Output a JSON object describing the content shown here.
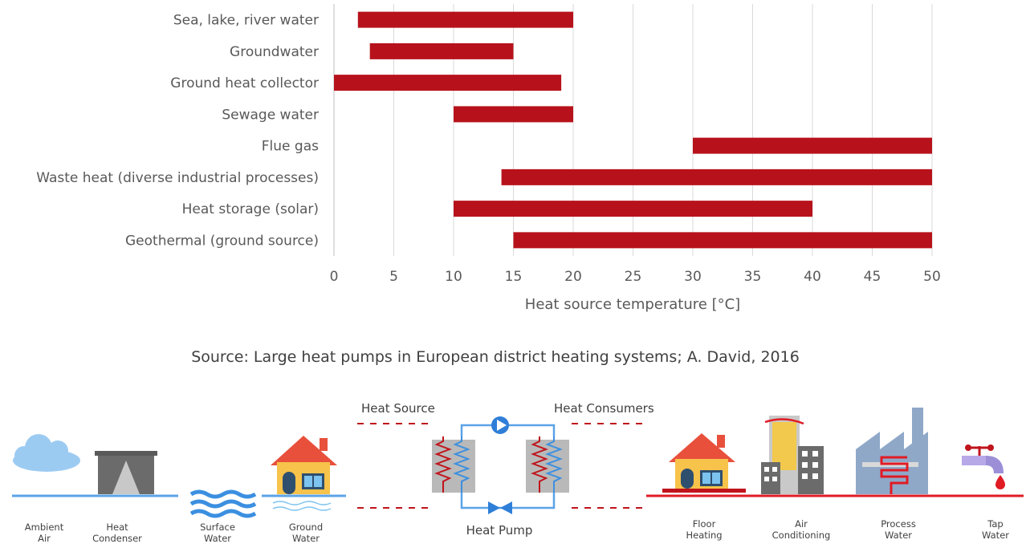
{
  "chart_data": {
    "type": "bar",
    "orientation": "horizontal-range",
    "categories": [
      "Sea, lake, river water",
      "Groundwater",
      "Ground heat collector",
      "Sewage water",
      "Flue gas",
      "Waste heat (diverse industrial processes)",
      "Heat storage (solar)",
      "Geothermal (ground source)"
    ],
    "ranges": [
      [
        2,
        20
      ],
      [
        3,
        15
      ],
      [
        0,
        19
      ],
      [
        10,
        20
      ],
      [
        30,
        50
      ],
      [
        14,
        50
      ],
      [
        10,
        40
      ],
      [
        15,
        50
      ]
    ],
    "xticks": [
      "0",
      "5",
      "10",
      "15",
      "20",
      "25",
      "30",
      "35",
      "40",
      "45",
      "50"
    ],
    "xlim": [
      0,
      50
    ],
    "xlabel": "Heat source temperature [°C]",
    "grid": true,
    "bar_color": "#b7121b"
  },
  "source_text": "Source: Large heat pumps in European district heating systems; A. David, 2016",
  "diagram": {
    "heat_source_label": "Heat Source",
    "heat_consumers_label": "Heat Consumers",
    "heat_pump_label": "Heat Pump",
    "sources": {
      "ambient_air": [
        "Ambient",
        "Air"
      ],
      "heat_condenser": [
        "Heat",
        "Condenser"
      ],
      "surface_water": [
        "Surface",
        "Water"
      ],
      "ground_water": [
        "Ground",
        "Water"
      ]
    },
    "consumers": {
      "floor_heating": [
        "Floor",
        "Heating"
      ],
      "air_conditioning": [
        "Air",
        "Conditioning"
      ],
      "process_water": [
        "Process",
        "Water"
      ],
      "tap_water": [
        "Tap",
        "Water"
      ]
    },
    "colors": {
      "source_line": "#5ba3e8",
      "consumer_line": "#e01b24",
      "dashed": "#c0141c"
    }
  }
}
